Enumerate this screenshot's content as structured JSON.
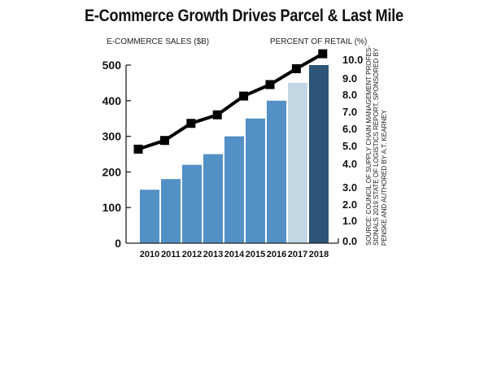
{
  "chart_data": {
    "type": "bar",
    "title": "E-Commerce Growth Drives Parcel & Last Mile",
    "categories": [
      "2010",
      "2011",
      "2012",
      "2013",
      "2014",
      "2015",
      "2016",
      "2017",
      "2018"
    ],
    "series": [
      {
        "name": "E-Commerce Sales ($B)",
        "type": "bar",
        "axis": "left",
        "values": [
          150,
          180,
          220,
          250,
          300,
          350,
          400,
          450,
          500
        ],
        "colors": [
          "#5290C6",
          "#5290C6",
          "#5290C6",
          "#5290C6",
          "#5290C6",
          "#5290C6",
          "#5290C6",
          "#C2D8E4",
          "#2C5577"
        ]
      },
      {
        "name": "Percent of Retail (%)",
        "type": "line",
        "axis": "right",
        "values": [
          4.8,
          5.3,
          6.3,
          6.8,
          7.9,
          8.6,
          9.5,
          10.3
        ],
        "color": "#000000",
        "marker": "square"
      }
    ],
    "left_axis": {
      "label": "E-COMMERCE SALES ($B)",
      "range": [
        0,
        500
      ],
      "ticks": [
        0,
        100,
        200,
        300,
        400,
        500
      ],
      "tick_labels": [
        "0",
        "100",
        "200",
        "300",
        "400",
        "500"
      ]
    },
    "right_axis": {
      "label": "PERCENT OF RETAIL (%)",
      "range": [
        0,
        10
      ],
      "ticks": [
        0,
        1,
        2,
        3,
        4,
        5,
        6,
        7,
        8,
        9,
        10
      ],
      "tick_labels": [
        "0.0",
        "1.0",
        "2.0",
        "3.0",
        "4.0",
        "5.0",
        "6.0",
        "7.0",
        "8.0",
        "9.0",
        "10.0"
      ]
    },
    "xlabel": "",
    "grid": false,
    "legend": "none",
    "source": [
      "SOURCE: COUNCIL OF SUPPLY CHAIN MANAGEMENT PROFES-",
      "SIONALS 2019 STATE OF LOGISTICS REPORT, SPONSORED BY",
      "PENSKE AND AUTHORED BY A.T. KEARNEY"
    ]
  }
}
